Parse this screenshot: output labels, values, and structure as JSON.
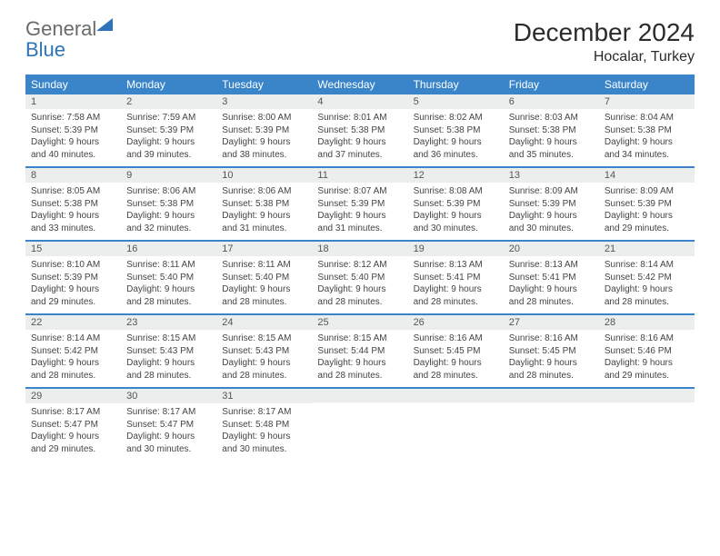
{
  "logo": {
    "line1": "General",
    "line2": "Blue"
  },
  "title": "December 2024",
  "location": "Hocalar, Turkey",
  "colors": {
    "header_bg": "#3a85c9",
    "header_text": "#ffffff",
    "daynum_bg": "#eceeee",
    "rule": "#3a85c9",
    "logo_blue": "#2d74b8"
  },
  "weekdays": [
    "Sunday",
    "Monday",
    "Tuesday",
    "Wednesday",
    "Thursday",
    "Friday",
    "Saturday"
  ],
  "weeks": [
    [
      {
        "n": "1",
        "sr": "Sunrise: 7:58 AM",
        "ss": "Sunset: 5:39 PM",
        "d1": "Daylight: 9 hours",
        "d2": "and 40 minutes."
      },
      {
        "n": "2",
        "sr": "Sunrise: 7:59 AM",
        "ss": "Sunset: 5:39 PM",
        "d1": "Daylight: 9 hours",
        "d2": "and 39 minutes."
      },
      {
        "n": "3",
        "sr": "Sunrise: 8:00 AM",
        "ss": "Sunset: 5:39 PM",
        "d1": "Daylight: 9 hours",
        "d2": "and 38 minutes."
      },
      {
        "n": "4",
        "sr": "Sunrise: 8:01 AM",
        "ss": "Sunset: 5:38 PM",
        "d1": "Daylight: 9 hours",
        "d2": "and 37 minutes."
      },
      {
        "n": "5",
        "sr": "Sunrise: 8:02 AM",
        "ss": "Sunset: 5:38 PM",
        "d1": "Daylight: 9 hours",
        "d2": "and 36 minutes."
      },
      {
        "n": "6",
        "sr": "Sunrise: 8:03 AM",
        "ss": "Sunset: 5:38 PM",
        "d1": "Daylight: 9 hours",
        "d2": "and 35 minutes."
      },
      {
        "n": "7",
        "sr": "Sunrise: 8:04 AM",
        "ss": "Sunset: 5:38 PM",
        "d1": "Daylight: 9 hours",
        "d2": "and 34 minutes."
      }
    ],
    [
      {
        "n": "8",
        "sr": "Sunrise: 8:05 AM",
        "ss": "Sunset: 5:38 PM",
        "d1": "Daylight: 9 hours",
        "d2": "and 33 minutes."
      },
      {
        "n": "9",
        "sr": "Sunrise: 8:06 AM",
        "ss": "Sunset: 5:38 PM",
        "d1": "Daylight: 9 hours",
        "d2": "and 32 minutes."
      },
      {
        "n": "10",
        "sr": "Sunrise: 8:06 AM",
        "ss": "Sunset: 5:38 PM",
        "d1": "Daylight: 9 hours",
        "d2": "and 31 minutes."
      },
      {
        "n": "11",
        "sr": "Sunrise: 8:07 AM",
        "ss": "Sunset: 5:39 PM",
        "d1": "Daylight: 9 hours",
        "d2": "and 31 minutes."
      },
      {
        "n": "12",
        "sr": "Sunrise: 8:08 AM",
        "ss": "Sunset: 5:39 PM",
        "d1": "Daylight: 9 hours",
        "d2": "and 30 minutes."
      },
      {
        "n": "13",
        "sr": "Sunrise: 8:09 AM",
        "ss": "Sunset: 5:39 PM",
        "d1": "Daylight: 9 hours",
        "d2": "and 30 minutes."
      },
      {
        "n": "14",
        "sr": "Sunrise: 8:09 AM",
        "ss": "Sunset: 5:39 PM",
        "d1": "Daylight: 9 hours",
        "d2": "and 29 minutes."
      }
    ],
    [
      {
        "n": "15",
        "sr": "Sunrise: 8:10 AM",
        "ss": "Sunset: 5:39 PM",
        "d1": "Daylight: 9 hours",
        "d2": "and 29 minutes."
      },
      {
        "n": "16",
        "sr": "Sunrise: 8:11 AM",
        "ss": "Sunset: 5:40 PM",
        "d1": "Daylight: 9 hours",
        "d2": "and 28 minutes."
      },
      {
        "n": "17",
        "sr": "Sunrise: 8:11 AM",
        "ss": "Sunset: 5:40 PM",
        "d1": "Daylight: 9 hours",
        "d2": "and 28 minutes."
      },
      {
        "n": "18",
        "sr": "Sunrise: 8:12 AM",
        "ss": "Sunset: 5:40 PM",
        "d1": "Daylight: 9 hours",
        "d2": "and 28 minutes."
      },
      {
        "n": "19",
        "sr": "Sunrise: 8:13 AM",
        "ss": "Sunset: 5:41 PM",
        "d1": "Daylight: 9 hours",
        "d2": "and 28 minutes."
      },
      {
        "n": "20",
        "sr": "Sunrise: 8:13 AM",
        "ss": "Sunset: 5:41 PM",
        "d1": "Daylight: 9 hours",
        "d2": "and 28 minutes."
      },
      {
        "n": "21",
        "sr": "Sunrise: 8:14 AM",
        "ss": "Sunset: 5:42 PM",
        "d1": "Daylight: 9 hours",
        "d2": "and 28 minutes."
      }
    ],
    [
      {
        "n": "22",
        "sr": "Sunrise: 8:14 AM",
        "ss": "Sunset: 5:42 PM",
        "d1": "Daylight: 9 hours",
        "d2": "and 28 minutes."
      },
      {
        "n": "23",
        "sr": "Sunrise: 8:15 AM",
        "ss": "Sunset: 5:43 PM",
        "d1": "Daylight: 9 hours",
        "d2": "and 28 minutes."
      },
      {
        "n": "24",
        "sr": "Sunrise: 8:15 AM",
        "ss": "Sunset: 5:43 PM",
        "d1": "Daylight: 9 hours",
        "d2": "and 28 minutes."
      },
      {
        "n": "25",
        "sr": "Sunrise: 8:15 AM",
        "ss": "Sunset: 5:44 PM",
        "d1": "Daylight: 9 hours",
        "d2": "and 28 minutes."
      },
      {
        "n": "26",
        "sr": "Sunrise: 8:16 AM",
        "ss": "Sunset: 5:45 PM",
        "d1": "Daylight: 9 hours",
        "d2": "and 28 minutes."
      },
      {
        "n": "27",
        "sr": "Sunrise: 8:16 AM",
        "ss": "Sunset: 5:45 PM",
        "d1": "Daylight: 9 hours",
        "d2": "and 28 minutes."
      },
      {
        "n": "28",
        "sr": "Sunrise: 8:16 AM",
        "ss": "Sunset: 5:46 PM",
        "d1": "Daylight: 9 hours",
        "d2": "and 29 minutes."
      }
    ],
    [
      {
        "n": "29",
        "sr": "Sunrise: 8:17 AM",
        "ss": "Sunset: 5:47 PM",
        "d1": "Daylight: 9 hours",
        "d2": "and 29 minutes."
      },
      {
        "n": "30",
        "sr": "Sunrise: 8:17 AM",
        "ss": "Sunset: 5:47 PM",
        "d1": "Daylight: 9 hours",
        "d2": "and 30 minutes."
      },
      {
        "n": "31",
        "sr": "Sunrise: 8:17 AM",
        "ss": "Sunset: 5:48 PM",
        "d1": "Daylight: 9 hours",
        "d2": "and 30 minutes."
      },
      {
        "n": "",
        "sr": "",
        "ss": "",
        "d1": "",
        "d2": ""
      },
      {
        "n": "",
        "sr": "",
        "ss": "",
        "d1": "",
        "d2": ""
      },
      {
        "n": "",
        "sr": "",
        "ss": "",
        "d1": "",
        "d2": ""
      },
      {
        "n": "",
        "sr": "",
        "ss": "",
        "d1": "",
        "d2": ""
      }
    ]
  ]
}
